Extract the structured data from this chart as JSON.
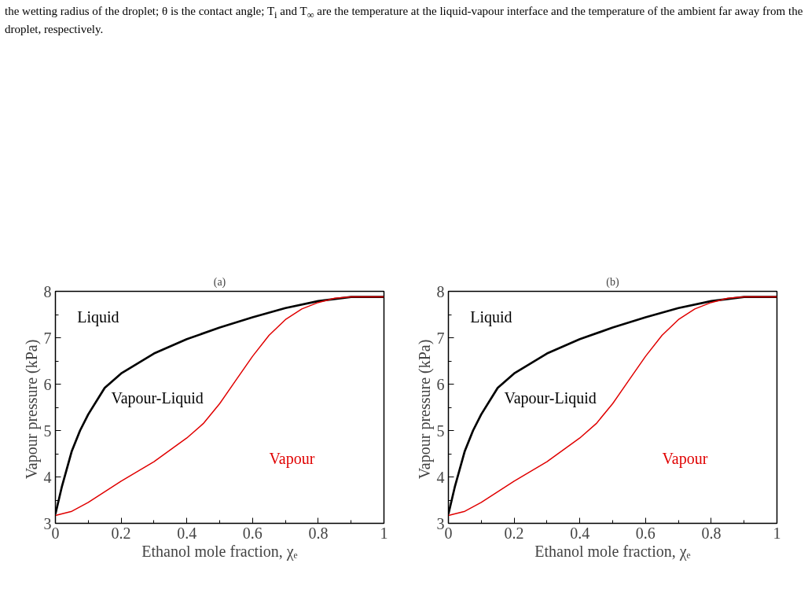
{
  "chart_data": [
    {
      "type": "line",
      "title": "(a)",
      "xlabel": "Ethanol mole fraction, χₑ",
      "ylabel": "Vapour  pressure (kPa)",
      "xlim": [
        0,
        1
      ],
      "ylim": [
        3,
        8
      ],
      "xticks": [
        0,
        0.2,
        0.4,
        0.6,
        0.8,
        1
      ],
      "yticks": [
        3,
        4,
        5,
        6,
        7,
        8
      ],
      "grid": false,
      "marker": "none",
      "line_style": "solid",
      "annotations": [
        "the wetting radius of the droplet; θ is the contact angle; T$_{i}$ and T$_{∞}$ are the temperature at the liquid-vapour interface and the temperature of the ambient far away from the droplet, respectively.",
        "Liquid",
        "Vapour-Liquid"
      ],
      "series": [
        {
          "color": "#000000",
          "x": [
            0,
            0.02,
            0.05,
            0.075,
            0.1,
            0.15,
            0.2,
            0.3,
            0.4,
            0.5,
            0.6,
            0.7,
            0.8,
            0.9,
            1
          ],
          "values": [
            3.2,
            3.8,
            4.56,
            5.0,
            5.35,
            5.92,
            6.23,
            6.66,
            6.97,
            7.22,
            7.44,
            7.64,
            7.79,
            7.88,
            7.88
          ]
        },
        {
          "name": "Vapour",
          "color": "#e00000",
          "x": [
            0,
            0.05,
            0.1,
            0.2,
            0.3,
            0.4,
            0.45,
            0.5,
            0.55,
            0.6,
            0.65,
            0.7,
            0.75,
            0.8,
            0.85,
            0.9,
            1
          ],
          "values": [
            3.17,
            3.26,
            3.45,
            3.91,
            4.33,
            4.84,
            5.15,
            5.58,
            6.09,
            6.6,
            7.05,
            7.39,
            7.62,
            7.76,
            7.85,
            7.88,
            7.88
          ]
        }
      ]
    },
    {
      "type": "line",
      "title": "(b)",
      "xlabel": "Ethanol mole fraction, χₑ",
      "ylabel": "Vapour  pressure (kPa)",
      "xlim": [
        0,
        1
      ],
      "ylim": [
        3,
        8
      ],
      "xticks": [
        0,
        0.2,
        0.4,
        0.6,
        0.8,
        1
      ],
      "yticks": [
        3,
        4,
        5,
        6,
        7,
        8
      ],
      "grid": false,
      "marker": "none",
      "line_style": "solid",
      "annotations": [
        "Liquid",
        "Vapour-Liquid"
      ],
      "series": [
        {
          "color": "#000000",
          "x": [
            0,
            0.02,
            0.05,
            0.075,
            0.1,
            0.15,
            0.2,
            0.3,
            0.4,
            0.5,
            0.6,
            0.7,
            0.8,
            0.9,
            1
          ],
          "values": [
            3.2,
            3.8,
            4.56,
            5.0,
            5.35,
            5.92,
            6.23,
            6.66,
            6.97,
            7.22,
            7.44,
            7.64,
            7.79,
            7.88,
            7.88
          ]
        },
        {
          "name": "Vapour",
          "color": "#e00000",
          "x": [
            0,
            0.05,
            0.1,
            0.2,
            0.3,
            0.4,
            0.45,
            0.5,
            0.55,
            0.6,
            0.65,
            0.7,
            0.75,
            0.8,
            0.85,
            0.9,
            1
          ],
          "values": [
            3.17,
            3.26,
            3.45,
            3.91,
            4.33,
            4.84,
            5.15,
            5.58,
            6.09,
            6.6,
            7.05,
            7.39,
            7.62,
            7.76,
            7.85,
            7.88,
            7.88
          ]
        }
      ]
    }
  ]
}
